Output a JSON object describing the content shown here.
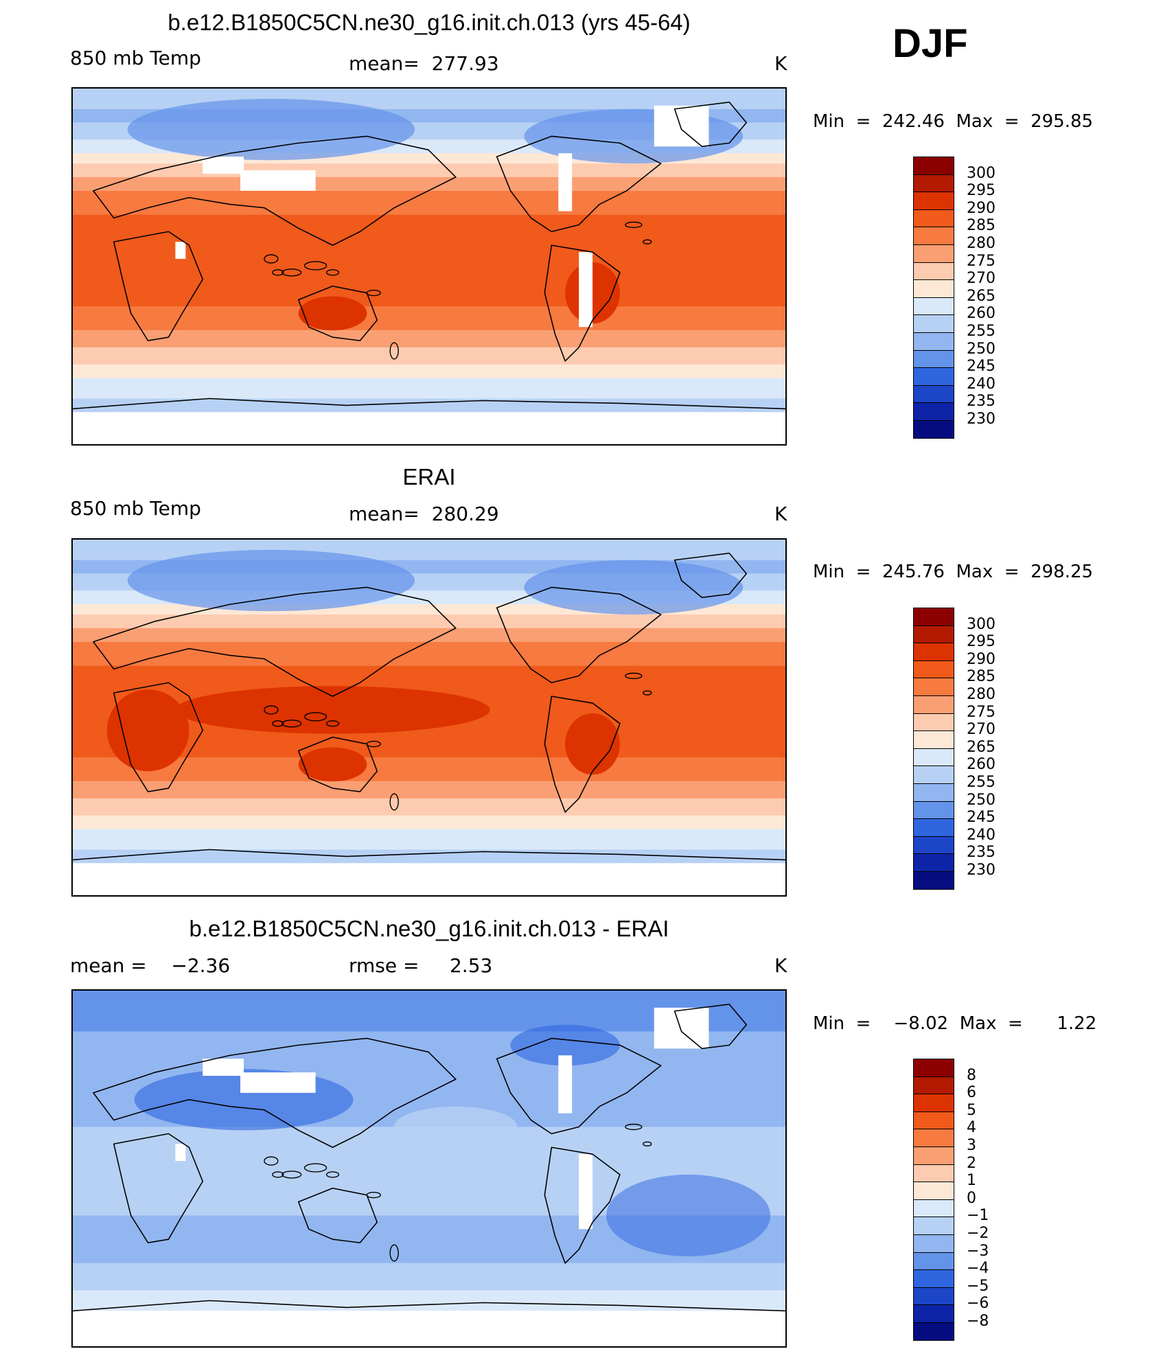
{
  "season": "DJF",
  "panels": [
    {
      "title": "b.e12.B1850C5CN.ne30_g16.init.ch.013 (yrs 45-64)",
      "left_text": "850 mb Temp",
      "center_text": "mean=  277.93",
      "units": "K",
      "minmax": "Min  =  242.46  Max  =  295.85",
      "kind": "model"
    },
    {
      "title": "ERAI",
      "left_text": "850 mb Temp",
      "center_text": "mean=  280.29",
      "units": "K",
      "minmax": "Min  =  245.76  Max  =  298.25",
      "kind": "obs"
    },
    {
      "title": "b.e12.B1850C5CN.ne30_g16.init.ch.013 - ERAI",
      "left_text": "mean =    −2.36",
      "center_text": "rmse =     2.53",
      "units": "K",
      "minmax": "Min  =    −8.02  Max  =      1.22",
      "kind": "diff"
    }
  ],
  "colorbar_temp": {
    "labels": [
      "300",
      "295",
      "290",
      "285",
      "280",
      "275",
      "270",
      "265",
      "260",
      "255",
      "250",
      "245",
      "240",
      "235",
      "230"
    ],
    "colors": [
      "#8c0000",
      "#b31a00",
      "#dd3300",
      "#f05a1a",
      "#f77a40",
      "#fa9f73",
      "#fdcbb0",
      "#fde8d6",
      "#dae9f9",
      "#b7d1f5",
      "#92b6f0",
      "#6493ea",
      "#2f66e0",
      "#1d45c8",
      "#0d24a8",
      "#050d80"
    ]
  },
  "colorbar_diff": {
    "labels": [
      "8",
      "6",
      "5",
      "4",
      "3",
      "2",
      "1",
      "0",
      "−1",
      "−2",
      "−3",
      "−4",
      "−5",
      "−6",
      "−8"
    ],
    "colors": [
      "#8c0000",
      "#b31a00",
      "#dd3300",
      "#f05a1a",
      "#f77a40",
      "#fa9f73",
      "#fdcbb0",
      "#fde8d6",
      "#dae9f9",
      "#b7d1f5",
      "#92b6f0",
      "#6493ea",
      "#2f66e0",
      "#1d45c8",
      "#0d24a8",
      "#050d80"
    ]
  },
  "map_colors": {
    "polar_white": "#ffffff",
    "cold": "#2f66e0",
    "cool": "#6493ea",
    "mild_cool": "#92b6f0",
    "light_cool": "#b7d1f5",
    "pale_blue": "#dae9f9",
    "pale_orange": "#fde8d6",
    "light_orange": "#fdcbb0",
    "salmon": "#fa9f73",
    "orange": "#f77a40",
    "red_orange": "#f05a1a",
    "red": "#dd3300",
    "dark_red": "#b31a00"
  }
}
